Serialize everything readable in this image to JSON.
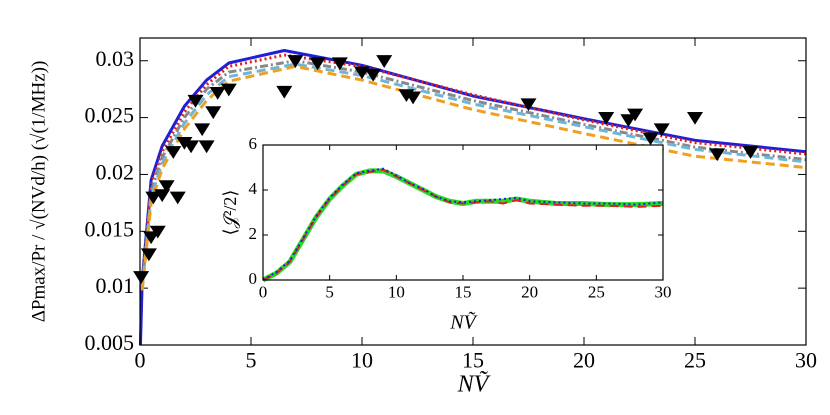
{
  "chart_data": [
    {
      "type": "line",
      "x_label": "NṼ",
      "y_label": "ΔPmax/Pr / √(NVd/h)  (√(1/MHz))",
      "xlim": [
        0,
        30
      ],
      "ylim": [
        0.005,
        0.032
      ],
      "xticks": [
        0,
        5,
        10,
        15,
        20,
        25,
        30
      ],
      "yticks": [
        0.005,
        0.01,
        0.015,
        0.02,
        0.025,
        0.03
      ],
      "series": [
        {
          "color": "#1f1fd6",
          "line_style": "solid",
          "x": [
            0.02,
            0.1,
            0.5,
            1,
            2,
            3,
            4,
            6.5,
            10,
            15,
            20,
            25,
            30
          ],
          "values": [
            0.005,
            0.0107,
            0.0195,
            0.0225,
            0.026,
            0.0283,
            0.0298,
            0.0309,
            0.0296,
            0.0269,
            0.0249,
            0.023,
            0.022
          ]
        },
        {
          "color": "#e02020",
          "line_style": "dotted",
          "x": [
            0.1,
            0.5,
            1,
            2,
            3,
            4,
            6.5,
            10,
            15,
            20,
            25,
            30
          ],
          "values": [
            0.0104,
            0.019,
            0.022,
            0.0255,
            0.0279,
            0.0295,
            0.0305,
            0.0295,
            0.027,
            0.0248,
            0.0228,
            0.0218
          ]
        },
        {
          "color": "#888888",
          "line_style": "dashdot",
          "x": [
            0.1,
            0.5,
            1,
            2,
            3,
            4,
            7,
            10,
            15,
            20,
            25,
            30
          ],
          "values": [
            0.0102,
            0.0185,
            0.0215,
            0.025,
            0.0275,
            0.029,
            0.03,
            0.029,
            0.0265,
            0.0244,
            0.0224,
            0.0213
          ]
        },
        {
          "color": "#6fb6d6",
          "line_style": "dashed",
          "x": [
            0.1,
            0.5,
            1,
            2,
            3,
            4,
            7,
            10,
            15,
            20,
            25,
            30
          ],
          "values": [
            0.01,
            0.018,
            0.021,
            0.0245,
            0.027,
            0.0286,
            0.0297,
            0.0287,
            0.0262,
            0.0242,
            0.0222,
            0.0211
          ]
        },
        {
          "color": "#f0a020",
          "line_style": "dashed",
          "x": [
            0.1,
            0.5,
            1,
            2,
            3,
            4,
            7,
            10,
            15,
            20,
            25,
            30
          ],
          "values": [
            0.0098,
            0.0175,
            0.0205,
            0.024,
            0.0265,
            0.0282,
            0.0295,
            0.0283,
            0.0257,
            0.0236,
            0.0216,
            0.0206
          ]
        },
        {
          "color": "#000000",
          "line_style": "none",
          "marker": "triangle-down",
          "x": [
            0.05,
            0.4,
            0.5,
            0.6,
            0.8,
            1,
            1.2,
            1.5,
            1.7,
            2,
            2.3,
            2.5,
            2.8,
            3,
            3.3,
            3.5,
            4,
            6.5,
            7,
            8,
            9,
            10,
            10.5,
            11,
            12,
            12.3,
            17.5,
            21,
            22,
            22.3,
            23,
            23.5,
            25,
            26,
            27.5
          ],
          "values": [
            0.011,
            0.013,
            0.0145,
            0.018,
            0.015,
            0.0182,
            0.019,
            0.022,
            0.018,
            0.0228,
            0.0225,
            0.0265,
            0.024,
            0.0225,
            0.0255,
            0.0272,
            0.0275,
            0.0273,
            0.03,
            0.0298,
            0.0298,
            0.029,
            0.0288,
            0.03,
            0.027,
            0.0268,
            0.0262,
            0.025,
            0.0248,
            0.0253,
            0.0232,
            0.024,
            0.025,
            0.0218,
            0.022
          ]
        }
      ]
    },
    {
      "type": "line",
      "x_label": "NṼ",
      "y_label": "⟨𝒥²/2⟩",
      "xlim": [
        0,
        30
      ],
      "ylim": [
        0,
        6
      ],
      "xticks": [
        0,
        5,
        10,
        15,
        20,
        25,
        30
      ],
      "yticks": [
        0,
        2,
        4,
        6
      ],
      "series": [
        {
          "color": "#22dd22",
          "line_style": "thick",
          "x": [
            0,
            1,
            2,
            3,
            4,
            5,
            6,
            7,
            8,
            9,
            10,
            11,
            12,
            13,
            14,
            15,
            16,
            17,
            18,
            19,
            20,
            22,
            24,
            26,
            28,
            30
          ],
          "values": [
            0,
            0.3,
            0.8,
            1.8,
            2.8,
            3.6,
            4.2,
            4.7,
            4.85,
            4.85,
            4.6,
            4.3,
            4.0,
            3.7,
            3.5,
            3.4,
            3.5,
            3.5,
            3.5,
            3.6,
            3.5,
            3.4,
            3.4,
            3.35,
            3.35,
            3.4
          ]
        },
        {
          "color": "#e02020",
          "line_style": "dashed",
          "x": [
            0,
            1,
            2,
            3,
            4,
            5,
            6,
            7,
            8,
            9,
            10,
            11,
            12,
            13,
            14,
            15,
            16,
            17,
            18,
            19,
            20,
            22,
            24,
            26,
            28,
            30
          ],
          "values": [
            0,
            0.3,
            0.8,
            1.8,
            2.8,
            3.6,
            4.2,
            4.7,
            4.8,
            4.9,
            4.6,
            4.3,
            4.0,
            3.7,
            3.45,
            3.4,
            3.45,
            3.5,
            3.4,
            3.55,
            3.4,
            3.35,
            3.3,
            3.3,
            3.25,
            3.3
          ]
        },
        {
          "color": "#1f1fd6",
          "line_style": "dotted",
          "x": [
            0,
            1,
            2,
            3,
            4,
            5,
            6,
            7,
            8,
            9,
            10,
            11,
            12,
            13,
            14,
            15,
            16,
            17,
            18,
            19,
            20,
            22,
            24,
            26,
            28,
            30
          ],
          "values": [
            0,
            0.35,
            0.85,
            1.85,
            2.85,
            3.65,
            4.25,
            4.75,
            4.85,
            4.95,
            4.65,
            4.3,
            4.05,
            3.7,
            3.5,
            3.45,
            3.5,
            3.55,
            3.6,
            3.65,
            3.5,
            3.45,
            3.4,
            3.4,
            3.35,
            3.45
          ]
        }
      ]
    }
  ]
}
